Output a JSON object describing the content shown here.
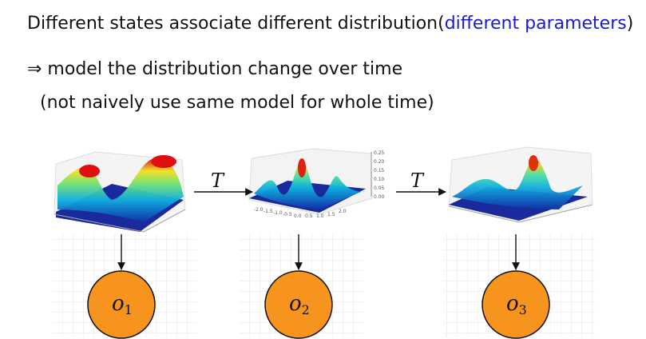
{
  "text": {
    "line1_prefix": "Different states associate different distribution(",
    "line1_highlight": "different parameters",
    "line1_suffix": ")",
    "line2_symbol": "⇒",
    "line2_text": " model the distribution change over time",
    "line3": "(not naively use same model for whole time)"
  },
  "diagram": {
    "transition_label": "T",
    "observations": [
      {
        "base": "o",
        "sub": "1"
      },
      {
        "base": "o",
        "sub": "2"
      },
      {
        "base": "o",
        "sub": "3"
      }
    ],
    "colors": {
      "node_fill": "#f7941d",
      "node_stroke": "#111111",
      "arrow": "#111111",
      "highlight": "#1a1ad6"
    },
    "surface_ticks": {
      "z_values": [
        "0.25",
        "0.20",
        "0.15",
        "0.10",
        "0.05",
        "0.00"
      ],
      "x_values": [
        "-2.0",
        "-1.5",
        "-1.0",
        "-0.5",
        "0.0",
        "0.5",
        "1.0",
        "1.5",
        "2.0"
      ]
    }
  }
}
